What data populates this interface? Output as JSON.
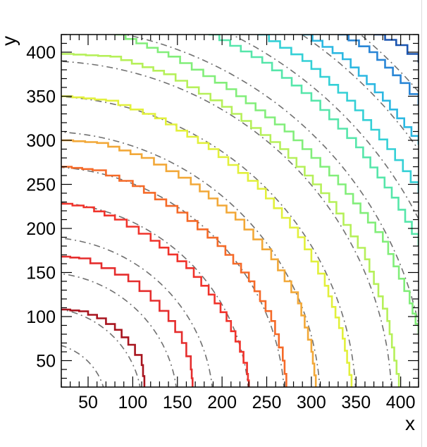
{
  "chart_data": {
    "type": "line",
    "title": "",
    "xlabel": "x",
    "ylabel": "y",
    "xlim": [
      20,
      420
    ],
    "ylim": [
      20,
      420
    ],
    "x_ticks": [
      50,
      100,
      150,
      200,
      250,
      300,
      350,
      400
    ],
    "y_ticks": [
      50,
      100,
      150,
      200,
      250,
      300,
      350,
      400
    ],
    "grid": false,
    "legend": "none",
    "dashed_contours": {
      "description_level_radii": [
        70,
        110,
        150,
        190,
        230,
        270,
        310,
        350,
        390,
        430,
        470,
        510,
        550
      ],
      "color": "#707070",
      "style": "dashed"
    },
    "contours": [
      {
        "color": "#a8141e",
        "x": [
          20,
          40,
          60,
          80,
          95,
          110,
          113
        ],
        "y": [
          108,
          106,
          98,
          85,
          68,
          45,
          20
        ]
      },
      {
        "color": "#e52d2d",
        "x": [
          20,
          40,
          65,
          95,
          120,
          140,
          155,
          165,
          167
        ],
        "y": [
          168,
          166,
          155,
          140,
          118,
          95,
          70,
          40,
          20
        ]
      },
      {
        "color": "#f0332b",
        "x": [
          20,
          45,
          80,
          120,
          160,
          185,
          205,
          220,
          228,
          230
        ],
        "y": [
          228,
          224,
          210,
          186,
          155,
          125,
          95,
          60,
          35,
          20
        ]
      },
      {
        "color": "#f56a28",
        "x": [
          20,
          55,
          100,
          150,
          195,
          230,
          255,
          268,
          272
        ],
        "y": [
          270,
          266,
          248,
          218,
          180,
          140,
          95,
          50,
          20
        ]
      },
      {
        "color": "#f2a838",
        "x": [
          20,
          60,
          110,
          165,
          215,
          255,
          285,
          300,
          305
        ],
        "y": [
          300,
          297,
          280,
          250,
          210,
          165,
          115,
          60,
          20
        ]
      },
      {
        "color": "#e2f03c",
        "x": [
          20,
          70,
          125,
          185,
          240,
          285,
          315,
          335,
          345
        ],
        "y": [
          350,
          345,
          325,
          290,
          245,
          190,
          135,
          75,
          20
        ]
      },
      {
        "color": "#b6f05a",
        "x": [
          20,
          75,
          135,
          200,
          265,
          320,
          360,
          385,
          398
        ],
        "y": [
          398,
          395,
          375,
          338,
          290,
          230,
          165,
          95,
          20
        ]
      },
      {
        "color": "#82ee7a",
        "x": [
          80,
          140,
          205,
          270,
          330,
          380,
          410,
          420
        ],
        "y": [
          420,
          395,
          358,
          310,
          250,
          185,
          115,
          80
        ]
      },
      {
        "color": "#56e6aa",
        "x": [
          185,
          245,
          300,
          350,
          390,
          420
        ],
        "y": [
          420,
          388,
          345,
          292,
          235,
          180
        ]
      },
      {
        "color": "#34d0d6",
        "x": [
          240,
          290,
          340,
          385,
          420
        ],
        "y": [
          420,
          390,
          345,
          290,
          240
        ]
      },
      {
        "color": "#2db8e2",
        "x": [
          290,
          335,
          380,
          420
        ],
        "y": [
          420,
          392,
          345,
          295
        ]
      },
      {
        "color": "#2a86d6",
        "x": [
          330,
          365,
          400,
          420
        ],
        "y": [
          420,
          400,
          365,
          340
        ]
      },
      {
        "color": "#1b55b0",
        "x": [
          370,
          395,
          420
        ],
        "y": [
          420,
          408,
          388
        ]
      }
    ]
  }
}
